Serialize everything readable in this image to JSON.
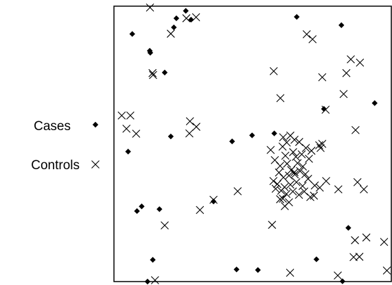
{
  "chart_data": {
    "type": "scatter",
    "title": "",
    "xlabel": "",
    "ylabel": "",
    "xlim": [
      0,
      1
    ],
    "ylim": [
      0,
      1
    ],
    "grid": false,
    "legend_placement": "left",
    "colors": {
      "marks": "#000000",
      "frame": "#000000"
    },
    "series": [
      {
        "name": "Cases",
        "marker": "diamond",
        "points": [
          [
            0.259,
            0.983
          ],
          [
            0.225,
            0.956
          ],
          [
            0.278,
            0.951
          ],
          [
            0.066,
            0.899
          ],
          [
            0.129,
            0.838
          ],
          [
            0.131,
            0.831
          ],
          [
            0.216,
            0.923
          ],
          [
            0.659,
            0.961
          ],
          [
            0.82,
            0.931
          ],
          [
            0.183,
            0.759
          ],
          [
            0.757,
            0.627
          ],
          [
            0.94,
            0.648
          ],
          [
            0.205,
            0.527
          ],
          [
            0.498,
            0.531
          ],
          [
            0.578,
            0.538
          ],
          [
            0.051,
            0.472
          ],
          [
            0.426,
            0.509
          ],
          [
            0.359,
            0.291
          ],
          [
            0.083,
            0.256
          ],
          [
            0.1,
            0.273
          ],
          [
            0.164,
            0.263
          ],
          [
            0.14,
            0.079
          ],
          [
            0.845,
            0.195
          ],
          [
            0.73,
            0.081
          ],
          [
            0.442,
            0.044
          ],
          [
            0.519,
            0.042
          ],
          [
            0.824,
            0.001
          ],
          [
            0.121,
            0.0
          ]
        ]
      },
      {
        "name": "Controls",
        "marker": "x",
        "points": [
          [
            0.13,
            0.995
          ],
          [
            0.261,
            0.956
          ],
          [
            0.205,
            0.9
          ],
          [
            0.296,
            0.96
          ],
          [
            0.695,
            0.898
          ],
          [
            0.716,
            0.88
          ],
          [
            0.854,
            0.807
          ],
          [
            0.887,
            0.795
          ],
          [
            0.838,
            0.757
          ],
          [
            0.139,
            0.757
          ],
          [
            0.141,
            0.75
          ],
          [
            0.576,
            0.764
          ],
          [
            0.751,
            0.742
          ],
          [
            0.828,
            0.681
          ],
          [
            0.6,
            0.666
          ],
          [
            0.763,
            0.624
          ],
          [
            0.028,
            0.603
          ],
          [
            0.059,
            0.603
          ],
          [
            0.045,
            0.555
          ],
          [
            0.08,
            0.537
          ],
          [
            0.274,
            0.582
          ],
          [
            0.297,
            0.562
          ],
          [
            0.272,
            0.538
          ],
          [
            0.871,
            0.55
          ],
          [
            0.565,
            0.478
          ],
          [
            0.61,
            0.524
          ],
          [
            0.636,
            0.53
          ],
          [
            0.651,
            0.515
          ],
          [
            0.623,
            0.505
          ],
          [
            0.608,
            0.49
          ],
          [
            0.668,
            0.507
          ],
          [
            0.692,
            0.485
          ],
          [
            0.712,
            0.475
          ],
          [
            0.58,
            0.441
          ],
          [
            0.618,
            0.457
          ],
          [
            0.646,
            0.47
          ],
          [
            0.656,
            0.453
          ],
          [
            0.677,
            0.462
          ],
          [
            0.703,
            0.446
          ],
          [
            0.599,
            0.42
          ],
          [
            0.624,
            0.428
          ],
          [
            0.639,
            0.405
          ],
          [
            0.662,
            0.43
          ],
          [
            0.681,
            0.418
          ],
          [
            0.595,
            0.396
          ],
          [
            0.611,
            0.378
          ],
          [
            0.631,
            0.385
          ],
          [
            0.652,
            0.389
          ],
          [
            0.671,
            0.401
          ],
          [
            0.69,
            0.39
          ],
          [
            0.575,
            0.365
          ],
          [
            0.589,
            0.354
          ],
          [
            0.615,
            0.343
          ],
          [
            0.636,
            0.352
          ],
          [
            0.658,
            0.361
          ],
          [
            0.68,
            0.347
          ],
          [
            0.7,
            0.373
          ],
          [
            0.724,
            0.349
          ],
          [
            0.742,
            0.341
          ],
          [
            0.603,
            0.33
          ],
          [
            0.622,
            0.318
          ],
          [
            0.645,
            0.327
          ],
          [
            0.667,
            0.315
          ],
          [
            0.686,
            0.327
          ],
          [
            0.708,
            0.307
          ],
          [
            0.631,
            0.288
          ],
          [
            0.609,
            0.301
          ],
          [
            0.583,
            0.337
          ],
          [
            0.651,
            0.397
          ],
          [
            0.616,
            0.274
          ],
          [
            0.74,
            0.495
          ],
          [
            0.751,
            0.5
          ],
          [
            0.745,
            0.485
          ],
          [
            0.809,
            0.335
          ],
          [
            0.878,
            0.361
          ],
          [
            0.901,
            0.335
          ],
          [
            0.765,
            0.365
          ],
          [
            0.599,
            0.299
          ],
          [
            0.721,
            0.312
          ],
          [
            0.446,
            0.328
          ],
          [
            0.359,
            0.297
          ],
          [
            0.31,
            0.26
          ],
          [
            0.183,
            0.204
          ],
          [
            0.57,
            0.206
          ],
          [
            0.869,
            0.15
          ],
          [
            0.91,
            0.16
          ],
          [
            0.885,
            0.09
          ],
          [
            0.864,
            0.089
          ],
          [
            0.974,
            0.144
          ],
          [
            0.635,
            0.032
          ],
          [
            0.807,
            0.022
          ],
          [
            0.984,
            0.04
          ],
          [
            0.148,
            0.005
          ]
        ]
      }
    ]
  }
}
